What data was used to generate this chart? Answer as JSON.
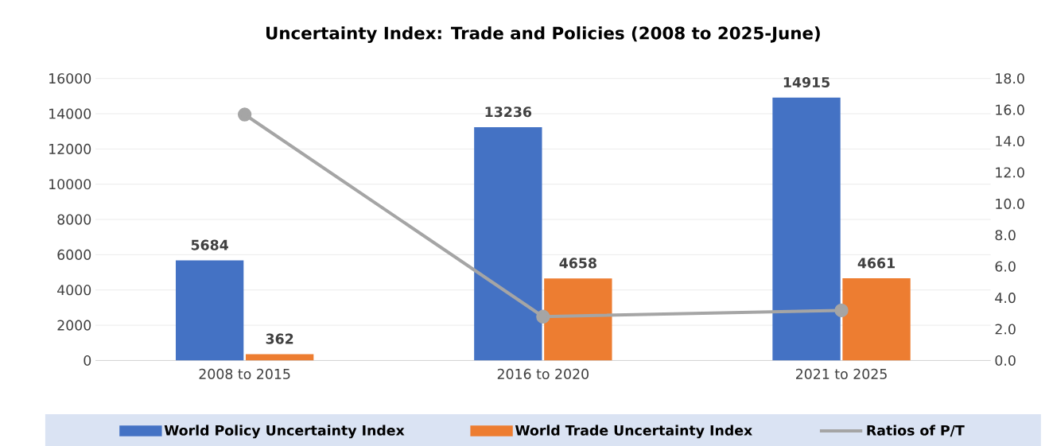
{
  "chart_data": {
    "type": "bar",
    "title": "Uncertainty Index: Trade and Policies (2008 to 2025-June)",
    "categories": [
      "2008 to 2015",
      "2016 to 2020",
      "2021 to 2025"
    ],
    "series": [
      {
        "name": "World Policy Uncertainty Index",
        "color": "#4472c4",
        "values": [
          5684,
          13236,
          14915
        ],
        "value_labels": [
          "5684",
          "13236",
          "14915"
        ]
      },
      {
        "name": "World Trade Uncertainty Index",
        "color": "#ed7d31",
        "values": [
          362,
          4658,
          4661
        ],
        "value_labels": [
          "362",
          "4658",
          "4661"
        ]
      },
      {
        "name": "Ratios of P/T",
        "type": "line",
        "axis": "y2",
        "color": "#a5a5a5",
        "values": [
          15.7,
          2.8,
          3.2
        ],
        "marker": "circle"
      }
    ],
    "ylim": [
      0,
      16000
    ],
    "yticks": [
      0,
      2000,
      4000,
      6000,
      8000,
      10000,
      12000,
      14000,
      16000
    ],
    "y2lim": [
      0,
      18
    ],
    "y2ticks": [
      {
        "value": 0,
        "label": "0.0"
      },
      {
        "value": 2,
        "label": "2.0"
      },
      {
        "value": 4,
        "label": "4.0"
      },
      {
        "value": 6,
        "label": "6.0"
      },
      {
        "value": 8,
        "label": "8.0"
      },
      {
        "value": 10,
        "label": "10.0"
      },
      {
        "value": 12,
        "label": "12.0"
      },
      {
        "value": 14,
        "label": "14.0"
      },
      {
        "value": 16,
        "label": "16.0"
      },
      {
        "value": 18,
        "label": "18.0"
      }
    ],
    "grid": "y",
    "legend": "bottom"
  }
}
